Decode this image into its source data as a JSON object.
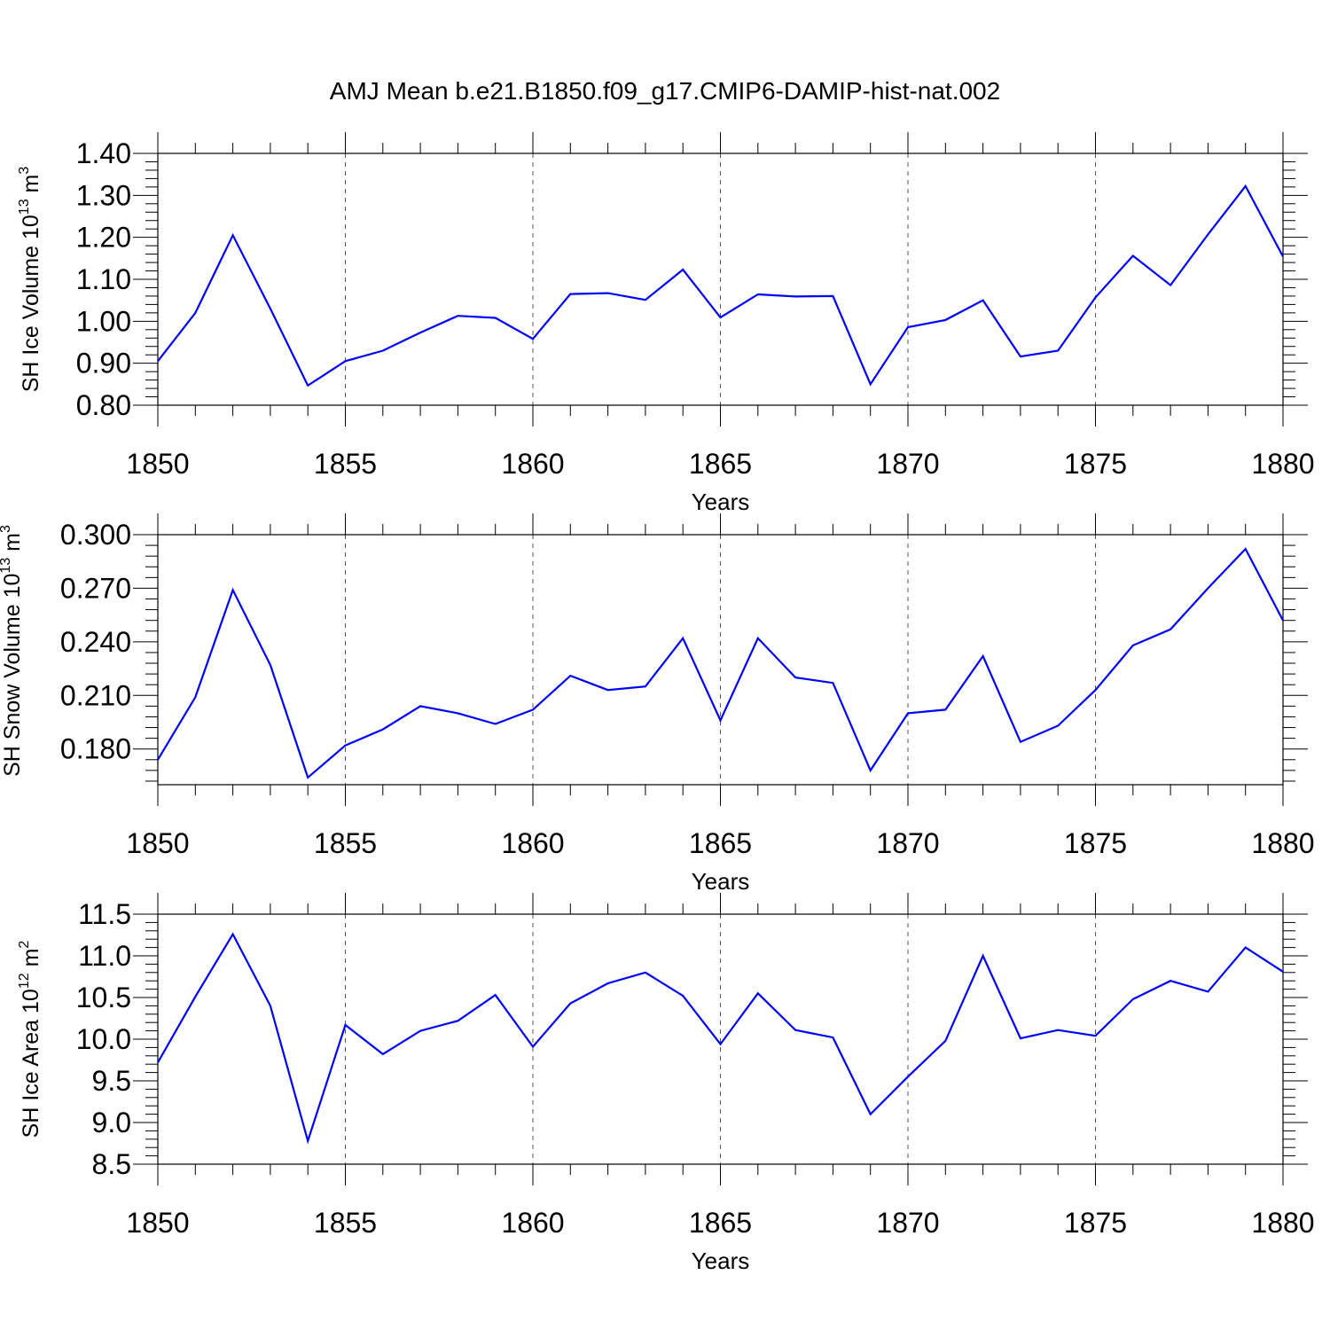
{
  "figure": {
    "title": "AMJ Mean b.e21.B1850.f09_g17.CMIP6-DAMIP-hist-nat.002",
    "line_color": "#0000ff"
  },
  "chart_data": [
    {
      "type": "line",
      "xlabel": "Years",
      "ylabel": "SH Ice Volume 10",
      "ylabel_exp": "13",
      "ylabel_unit": " m",
      "ylabel_unit_exp": "3",
      "xlim": [
        1850,
        1880
      ],
      "ylim": [
        0.8,
        1.4
      ],
      "x_ticks": [
        1850,
        1855,
        1860,
        1865,
        1870,
        1875,
        1880
      ],
      "x_tick_labels": [
        "1850",
        "1855",
        "1860",
        "1865",
        "1870",
        "1875",
        "1880"
      ],
      "y_ticks": [
        0.8,
        0.9,
        1.0,
        1.1,
        1.2,
        1.3,
        1.4
      ],
      "y_tick_labels": [
        "0.80",
        "0.90",
        "1.00",
        "1.10",
        "1.20",
        "1.30",
        "1.40"
      ],
      "grid": "vertical dashed at major x ticks",
      "x": [
        1850,
        1851,
        1852,
        1853,
        1854,
        1855,
        1856,
        1857,
        1858,
        1859,
        1860,
        1861,
        1862,
        1863,
        1864,
        1865,
        1866,
        1867,
        1868,
        1869,
        1870,
        1871,
        1872,
        1873,
        1874,
        1875,
        1876,
        1877,
        1878,
        1879,
        1880
      ],
      "y": [
        0.905,
        1.02,
        1.205,
        1.03,
        0.847,
        0.905,
        0.93,
        0.973,
        1.013,
        1.008,
        0.958,
        1.065,
        1.067,
        1.051,
        1.123,
        1.009,
        1.064,
        1.059,
        1.06,
        0.85,
        0.986,
        1.003,
        1.05,
        0.916,
        0.93,
        1.057,
        1.156,
        1.086,
        1.207,
        1.322,
        1.154
      ]
    },
    {
      "type": "line",
      "xlabel": "Years",
      "ylabel": "SH Snow Volume 10",
      "ylabel_exp": "13",
      "ylabel_unit": " m",
      "ylabel_unit_exp": "3",
      "xlim": [
        1850,
        1880
      ],
      "ylim": [
        0.16,
        0.3
      ],
      "x_ticks": [
        1850,
        1855,
        1860,
        1865,
        1870,
        1875,
        1880
      ],
      "x_tick_labels": [
        "1850",
        "1855",
        "1860",
        "1865",
        "1870",
        "1875",
        "1880"
      ],
      "y_ticks": [
        0.18,
        0.21,
        0.24,
        0.27,
        0.3
      ],
      "y_tick_labels": [
        "0.180",
        "0.210",
        "0.240",
        "0.270",
        "0.300"
      ],
      "grid": "vertical dashed at major x ticks",
      "x": [
        1850,
        1851,
        1852,
        1853,
        1854,
        1855,
        1856,
        1857,
        1858,
        1859,
        1860,
        1861,
        1862,
        1863,
        1864,
        1865,
        1866,
        1867,
        1868,
        1869,
        1870,
        1871,
        1872,
        1873,
        1874,
        1875,
        1876,
        1877,
        1878,
        1879,
        1880
      ],
      "y": [
        0.174,
        0.209,
        0.269,
        0.227,
        0.164,
        0.182,
        0.191,
        0.204,
        0.2,
        0.194,
        0.202,
        0.221,
        0.213,
        0.215,
        0.242,
        0.196,
        0.242,
        0.22,
        0.217,
        0.168,
        0.2,
        0.202,
        0.232,
        0.184,
        0.193,
        0.213,
        0.238,
        0.247,
        0.27,
        0.292,
        0.252
      ]
    },
    {
      "type": "line",
      "xlabel": "Years",
      "ylabel": "SH Ice Area 10",
      "ylabel_exp": "12",
      "ylabel_unit": " m",
      "ylabel_unit_exp": "2",
      "xlim": [
        1850,
        1880
      ],
      "ylim": [
        8.5,
        11.5
      ],
      "x_ticks": [
        1850,
        1855,
        1860,
        1865,
        1870,
        1875,
        1880
      ],
      "x_tick_labels": [
        "1850",
        "1855",
        "1860",
        "1865",
        "1870",
        "1875",
        "1880"
      ],
      "y_ticks": [
        8.5,
        9.0,
        9.5,
        10.0,
        10.5,
        11.0,
        11.5
      ],
      "y_tick_labels": [
        "8.5",
        "9.0",
        "9.5",
        "10.0",
        "10.5",
        "11.0",
        "11.5"
      ],
      "grid": "vertical dashed at major x ticks",
      "x": [
        1850,
        1851,
        1852,
        1853,
        1854,
        1855,
        1856,
        1857,
        1858,
        1859,
        1860,
        1861,
        1862,
        1863,
        1864,
        1865,
        1866,
        1867,
        1868,
        1869,
        1870,
        1871,
        1872,
        1873,
        1874,
        1875,
        1876,
        1877,
        1878,
        1879,
        1880
      ],
      "y": [
        9.72,
        10.51,
        11.26,
        10.4,
        8.78,
        10.17,
        9.82,
        10.1,
        10.22,
        10.53,
        9.91,
        10.43,
        10.67,
        10.8,
        10.52,
        9.94,
        10.55,
        10.11,
        10.02,
        9.1,
        9.55,
        9.98,
        11.0,
        10.01,
        10.11,
        10.04,
        10.48,
        10.7,
        10.57,
        11.1,
        10.81
      ]
    }
  ]
}
